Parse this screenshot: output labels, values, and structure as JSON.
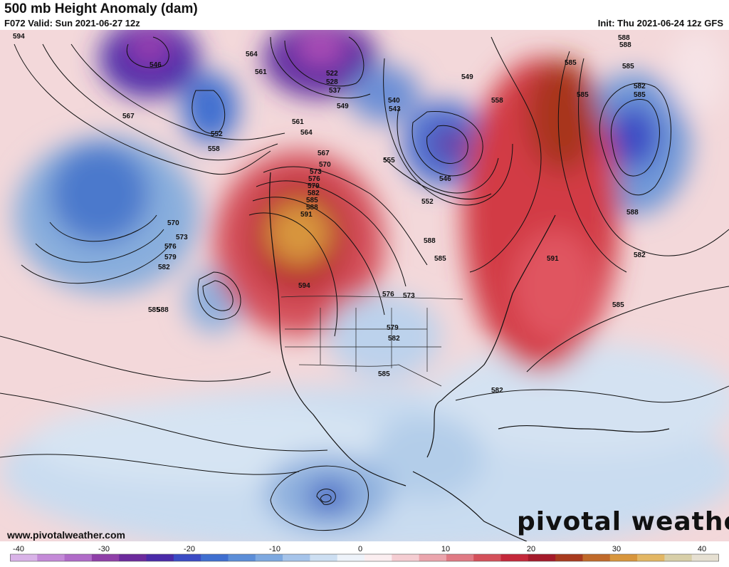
{
  "header": {
    "title": "500 mb Height Anomaly (dam)",
    "valid": "F072 Valid: Sun 2021-06-27 12z",
    "init": "Init: Thu 2021-06-24 12z GFS"
  },
  "footer": {
    "website": "www.pivotalweather.com",
    "brand": "pivotal weather"
  },
  "colorbar": {
    "ticks": [
      {
        "value": -40,
        "label": "-40"
      },
      {
        "value": -30,
        "label": "-30"
      },
      {
        "value": -20,
        "label": "-20"
      },
      {
        "value": -10,
        "label": "-10"
      },
      {
        "value": 0,
        "label": "0"
      },
      {
        "value": 10,
        "label": "10"
      },
      {
        "value": 20,
        "label": "20"
      },
      {
        "value": 30,
        "label": "30"
      },
      {
        "value": 40,
        "label": "40"
      }
    ],
    "colors": [
      "#d9b3e8",
      "#c48ad8",
      "#b06bc8",
      "#8f3fa8",
      "#6c2a9c",
      "#4a2aa8",
      "#3b4bc4",
      "#3f6fd0",
      "#5c8ed8",
      "#7ea9e0",
      "#a6c4ea",
      "#cddff2",
      "#eef3fa",
      "#fbeef0",
      "#f5cdd2",
      "#eba5ad",
      "#e07a84",
      "#d4505a",
      "#c4283a",
      "#a41a2a",
      "#a83a1e",
      "#c06a2a",
      "#d8963c",
      "#e3b764",
      "#d8cfa8",
      "#e6e0d2"
    ]
  },
  "contour_labels": [
    "594",
    "546",
    "564",
    "561",
    "567",
    "552",
    "558",
    "570",
    "573",
    "576",
    "579",
    "582",
    "588",
    "585",
    "522",
    "528",
    "537",
    "549",
    "540",
    "543",
    "555",
    "561",
    "564",
    "567",
    "570",
    "573",
    "576",
    "579",
    "582",
    "585",
    "588",
    "591",
    "594",
    "552",
    "546",
    "549",
    "558",
    "576",
    "579",
    "582",
    "585",
    "573",
    "588",
    "591",
    "585",
    "582",
    "585",
    "585",
    "588",
    "588",
    "585",
    "582",
    "585",
    "588",
    "582",
    "585"
  ]
}
